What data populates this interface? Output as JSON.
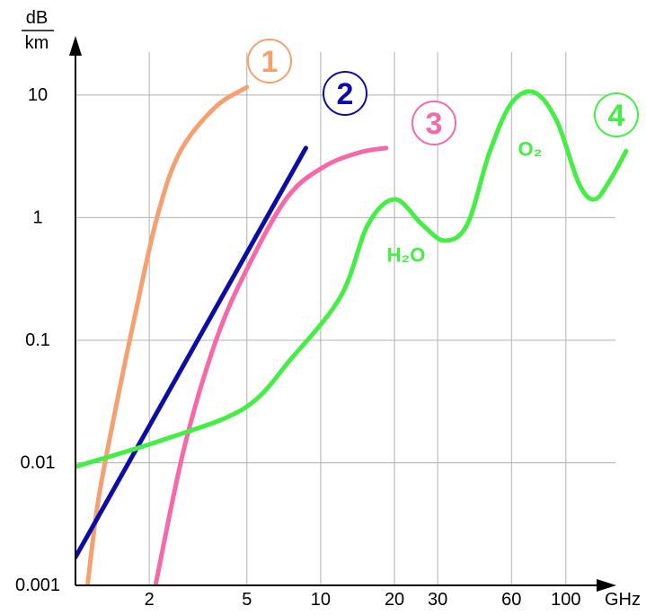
{
  "chart_data": {
    "type": "line",
    "xscale": "log",
    "yscale": "log",
    "grid": true,
    "xlabel": "GHz",
    "ylabel": [
      "dB",
      "km"
    ],
    "xlim": [
      1,
      154
    ],
    "ylim": [
      0.001,
      24
    ],
    "xticks": [
      2,
      5,
      10,
      20,
      30,
      60,
      100
    ],
    "yticks": [
      0.001,
      0.01,
      0.1,
      1,
      10
    ],
    "series": [
      {
        "name": "1",
        "color": "#f6a070",
        "x": [
          1.12,
          1.24,
          1.47,
          1.75,
          2.15,
          2.66,
          3.7,
          5
        ],
        "values": [
          0.001,
          0.005,
          0.03,
          0.16,
          1.0,
          3.4,
          7.9,
          11.6
        ]
      },
      {
        "name": "2",
        "color": "#0c0ca8",
        "x": [
          1,
          8.7
        ],
        "values": [
          0.0017,
          3.7
        ]
      },
      {
        "name": "3",
        "color": "#f868a8",
        "x": [
          2.12,
          2.77,
          3.73,
          5,
          7.3,
          10.3,
          14.4,
          18.5
        ],
        "values": [
          0.001,
          0.013,
          0.098,
          0.38,
          1.46,
          2.6,
          3.4,
          3.7
        ]
      },
      {
        "name": "4",
        "color": "#44ee44",
        "x": [
          1,
          2.3,
          4.9,
          7.6,
          12.1,
          15.6,
          20.1,
          25.9,
          32,
          39.6,
          48.8,
          60,
          74.6,
          92,
          113,
          131,
          152,
          176
        ],
        "values": [
          0.0093,
          0.0155,
          0.028,
          0.071,
          0.23,
          0.88,
          1.41,
          0.88,
          0.65,
          0.88,
          3.4,
          8.6,
          10.5,
          6.1,
          1.9,
          1.41,
          2.05,
          3.5
        ]
      }
    ],
    "annotations": [
      "H₂O",
      "O₂"
    ]
  }
}
